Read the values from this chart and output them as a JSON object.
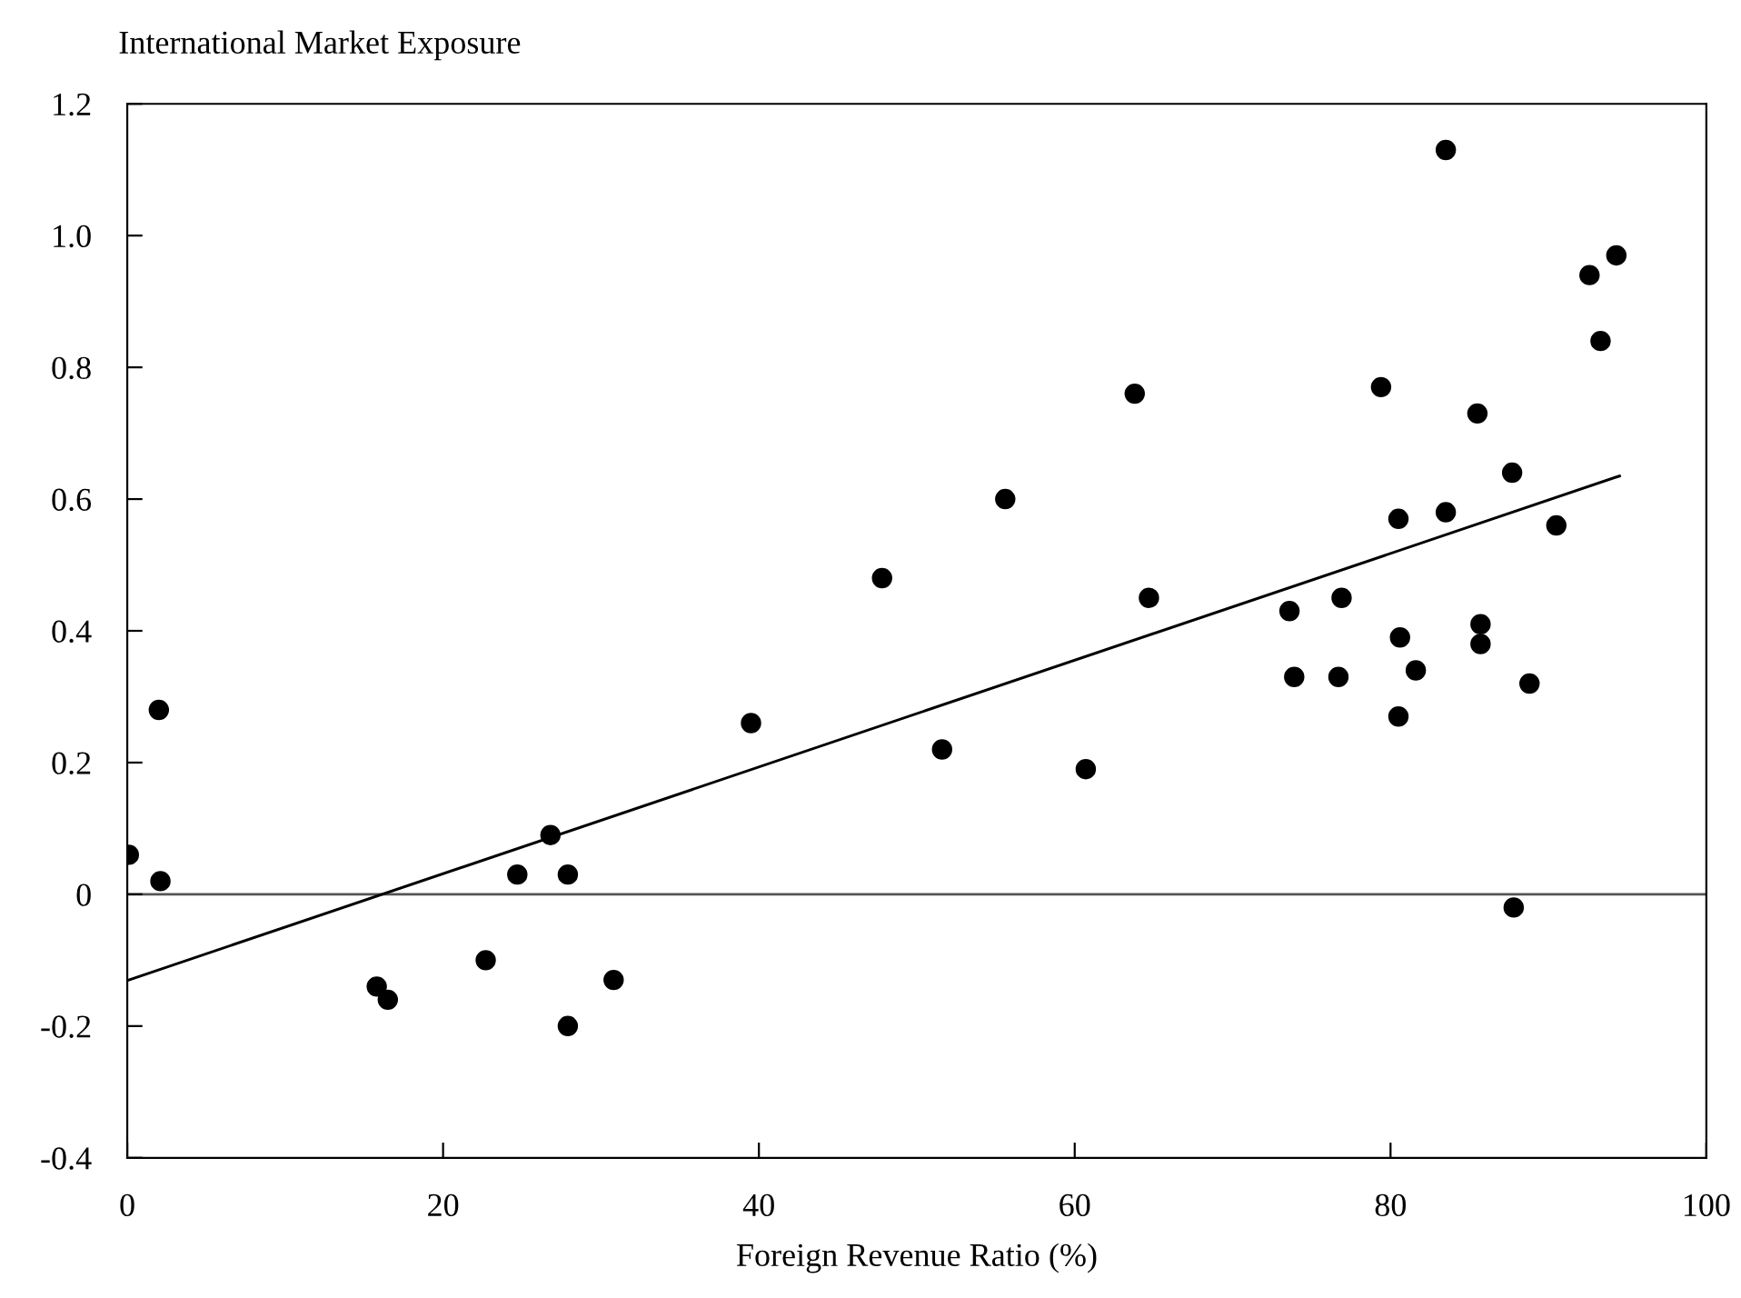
{
  "chart_data": {
    "type": "scatter",
    "ylabel": "International Market Exposure",
    "xlabel": "Foreign Revenue Ratio (%)",
    "xlim": [
      0,
      100
    ],
    "xticks": [
      0,
      20,
      40,
      60,
      80,
      100
    ],
    "ylim": [
      -0.4,
      1.2
    ],
    "yticks": [
      {
        "value": -0.4,
        "label": "-0.4"
      },
      {
        "value": -0.2,
        "label": "-0.2"
      },
      {
        "value": 0,
        "label": "0"
      },
      {
        "value": 0.2,
        "label": "0.2"
      },
      {
        "value": 0.4,
        "label": "0.4"
      },
      {
        "value": 0.6,
        "label": "0.6"
      },
      {
        "value": 0.8,
        "label": "0.8"
      },
      {
        "value": 1.0,
        "label": "1.0"
      },
      {
        "value": 1.2,
        "label": "1.2"
      }
    ],
    "grid": false,
    "ref_lines": [
      {
        "axis": "y",
        "value": 0,
        "color": "#555555"
      }
    ],
    "series": [
      {
        "marker": "circle",
        "color": "#000000",
        "x": [
          0.1,
          2.0,
          2.1,
          15.8,
          16.5,
          22.7,
          24.7,
          26.8,
          27.9,
          27.9,
          30.8,
          39.5,
          83.5,
          94.3,
          92.6,
          93.3,
          63.8,
          79.4,
          85.5,
          87.7,
          55.6,
          80.5,
          83.5,
          90.5,
          47.8,
          64.7,
          76.9,
          73.6,
          85.7,
          80.6,
          85.7,
          73.9,
          76.7,
          81.6,
          88.8,
          80.5,
          51.6,
          60.7,
          87.8
        ],
        "values": [
          0.06,
          0.28,
          0.02,
          -0.14,
          -0.16,
          -0.1,
          0.03,
          0.09,
          0.03,
          -0.2,
          -0.13,
          0.26,
          1.13,
          0.97,
          0.94,
          0.84,
          0.76,
          0.77,
          0.73,
          0.64,
          0.6,
          0.57,
          0.58,
          0.56,
          0.48,
          0.45,
          0.45,
          0.43,
          0.41,
          0.39,
          0.38,
          0.33,
          0.33,
          0.34,
          0.32,
          0.27,
          0.22,
          0.19,
          -0.02
        ]
      },
      {
        "type": "line",
        "marker": "none",
        "color": "#000000",
        "x": [
          0.1,
          94.5
        ],
        "values": [
          -0.13,
          0.635
        ]
      }
    ]
  }
}
